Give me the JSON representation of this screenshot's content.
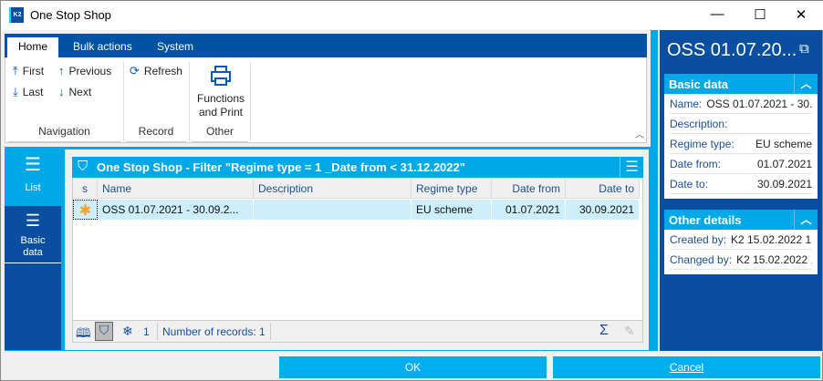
{
  "window": {
    "title": "One Stop Shop",
    "logo": "K2",
    "minimize": "—",
    "maximize": "☐",
    "close": "✕"
  },
  "ribbon": {
    "tabs": [
      "Home",
      "Bulk actions",
      "System"
    ],
    "navigation": {
      "first": "First",
      "previous": "Previous",
      "last": "Last",
      "next": "Next",
      "label": "Navigation"
    },
    "record": {
      "refresh": "Refresh",
      "label": "Record"
    },
    "other": {
      "functions": "Functions",
      "functions2": "and Print",
      "label": "Other"
    }
  },
  "leftnav": {
    "items": [
      {
        "label": "List",
        "active": true
      },
      {
        "label": "Basic data",
        "active": false
      }
    ]
  },
  "grid": {
    "title": "One Stop Shop - Filter \"Regime type = 1 _Date from < 31.12.2022\"",
    "columns": [
      "s",
      "Name",
      "Description",
      "Regime type",
      "Date from",
      "Date to"
    ],
    "rows": [
      {
        "s": "✱",
        "name": "OSS 01.07.2021 - 30.09.2...",
        "description": "",
        "regime_type": "EU scheme",
        "date_from": "01.07.2021",
        "date_to": "30.09.2021"
      }
    ],
    "footer": {
      "filter_count": "1",
      "records": "Number of records: 1",
      "sum": "Σ"
    }
  },
  "detail": {
    "title": "OSS 01.07.20...",
    "basic": {
      "header": "Basic data",
      "fields": [
        {
          "label": "Name:",
          "value": "OSS 01.07.2021 - 30...."
        },
        {
          "label": "Description:",
          "value": ""
        },
        {
          "label": "Regime type:",
          "value": "EU scheme"
        },
        {
          "label": "Date from:",
          "value": "01.07.2021"
        },
        {
          "label": "Date to:",
          "value": "30.09.2021"
        }
      ]
    },
    "other": {
      "header": "Other details",
      "fields": [
        {
          "label": "Created by:",
          "value": "K2 15.02.2022 1..."
        },
        {
          "label": "Changed by:",
          "value": "K2 15.02.2022 ..."
        }
      ]
    }
  },
  "buttons": {
    "ok": "OK",
    "cancel": "Cancel"
  },
  "colors": {
    "dark_blue": "#0a4ea0",
    "accent": "#00a8e8",
    "selected_row": "#cdeefb"
  }
}
